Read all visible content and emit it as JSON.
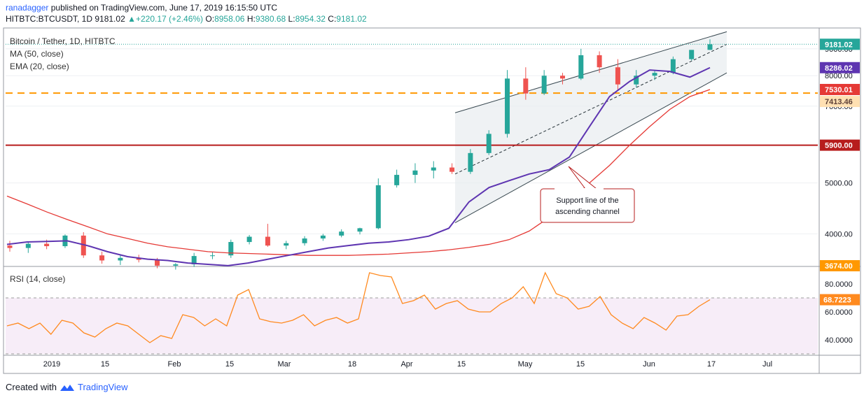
{
  "header": {
    "user": "ranadagger",
    "published": "published on TradingView.com, June 17, 2019 16:15:50 UTC",
    "symbol": "HITBTC:BTCUSDT, 1D",
    "last": "9181.02",
    "change": "+220.17 (+2.46%)",
    "o_label": "O:",
    "o": "8958.06",
    "h_label": "H:",
    "h": "9380.68",
    "l_label": "L:",
    "l": "8954.32",
    "c_label": "C:",
    "c": "9181.02"
  },
  "legend": {
    "title": "Bitcoin / Tether, 1D, HITBTC",
    "ma": "MA (50, close)",
    "ema": "EMA (20, close)",
    "rsi": "RSI (14, close)"
  },
  "annotation": {
    "line1": "Support line of the",
    "line2": "ascending channel"
  },
  "footer": {
    "created": "Created with",
    "brand": "TradingView"
  },
  "colors": {
    "up": "#26a69a",
    "down": "#ef5350",
    "ma": "#e53935",
    "ema": "#5e35b1",
    "resistance": "#b71c1c",
    "support_dash": "#ff9800",
    "rsi": "#ff8a1f",
    "channel": "#37474f"
  },
  "chart_data": [
    {
      "type": "candlestick",
      "title": "Bitcoin / Tether, 1D, HITBTC",
      "x_labels": [
        "2019",
        "15",
        "Feb",
        "15",
        "Mar",
        "18",
        "Apr",
        "15",
        "May",
        "15",
        "Jun",
        "17",
        "Jul"
      ],
      "y_ticks": [
        "4000.00",
        "5000.00",
        "7000.00",
        "8000.00",
        "9000.00"
      ],
      "y_scale": "log",
      "price_tags": [
        {
          "label": "9181.02",
          "value": 9181.02,
          "kind": "last"
        },
        {
          "label": "8286.02",
          "value": 8286.02,
          "kind": "ema"
        },
        {
          "label": "7530.01",
          "value": 7530.01,
          "kind": "ma"
        },
        {
          "label": "7413.46",
          "value": 7413.46,
          "kind": "support"
        },
        {
          "label": "5900.00",
          "value": 5900.0,
          "kind": "resistance"
        },
        {
          "label": "3674.00",
          "value": 3674.0,
          "kind": "axis-bottom"
        }
      ],
      "horizontal_levels": [
        {
          "value": 7413.46,
          "style": "dashed"
        },
        {
          "value": 5900.0,
          "style": "solid"
        }
      ],
      "series": [
        {
          "name": "MA (50, close)",
          "values": [
            4720,
            4560,
            4400,
            4260,
            4130,
            4000,
            3920,
            3840,
            3780,
            3740,
            3700,
            3680,
            3670,
            3660,
            3650,
            3640,
            3640,
            3640,
            3650,
            3660,
            3680,
            3700,
            3730,
            3770,
            3820,
            3900,
            4050,
            4300,
            4600,
            5000,
            5400,
            5900,
            6400,
            6900,
            7300,
            7530
          ]
        },
        {
          "name": "EMA (20, close)",
          "values": [
            3820,
            3860,
            3870,
            3880,
            3800,
            3700,
            3620,
            3580,
            3560,
            3520,
            3500,
            3480,
            3520,
            3580,
            3640,
            3700,
            3760,
            3800,
            3840,
            3860,
            3900,
            3960,
            4100,
            4600,
            4900,
            5050,
            5200,
            5300,
            5600,
            6400,
            7300,
            7800,
            8200,
            8150,
            7950,
            8286
          ]
        }
      ],
      "ohlc": [
        [
          3800,
          3880,
          3700,
          3760
        ],
        [
          3760,
          3860,
          3680,
          3830
        ],
        [
          3830,
          3900,
          3740,
          3790
        ],
        [
          3790,
          3990,
          3760,
          3970
        ],
        [
          3970,
          4030,
          3600,
          3640
        ],
        [
          3640,
          3700,
          3510,
          3560
        ],
        [
          3560,
          3640,
          3490,
          3600
        ],
        [
          3600,
          3650,
          3530,
          3570
        ],
        [
          3570,
          3600,
          3440,
          3480
        ],
        [
          3480,
          3520,
          3420,
          3500
        ],
        [
          3500,
          3680,
          3460,
          3630
        ],
        [
          3630,
          3700,
          3580,
          3640
        ],
        [
          3640,
          3900,
          3600,
          3860
        ],
        [
          3860,
          3980,
          3820,
          3950
        ],
        [
          3950,
          4180,
          3780,
          3800
        ],
        [
          3800,
          3880,
          3740,
          3840
        ],
        [
          3840,
          3960,
          3800,
          3920
        ],
        [
          3920,
          4000,
          3880,
          3970
        ],
        [
          3970,
          4080,
          3940,
          4040
        ],
        [
          4040,
          4110,
          3990,
          4100
        ],
        [
          4100,
          5100,
          4080,
          4950
        ],
        [
          4950,
          5300,
          4900,
          5180
        ],
        [
          5180,
          5450,
          5000,
          5280
        ],
        [
          5280,
          5500,
          5100,
          5350
        ],
        [
          5350,
          5450,
          5200,
          5250
        ],
        [
          5250,
          5800,
          5200,
          5700
        ],
        [
          5700,
          6300,
          5650,
          6200
        ],
        [
          6200,
          8200,
          6100,
          7900
        ],
        [
          7900,
          8300,
          7200,
          7400
        ],
        [
          7400,
          8200,
          7350,
          8000
        ],
        [
          8000,
          8100,
          7700,
          7900
        ],
        [
          7900,
          9000,
          7850,
          8750
        ],
        [
          8750,
          8900,
          8100,
          8300
        ],
        [
          8300,
          8600,
          7500,
          7700
        ],
        [
          7700,
          8200,
          7600,
          8000
        ],
        [
          8000,
          8200,
          7850,
          8100
        ],
        [
          8100,
          8700,
          8050,
          8600
        ],
        [
          8600,
          8950,
          8550,
          8958
        ],
        [
          8958,
          9380,
          8954,
          9181
        ]
      ],
      "channel": {
        "upper": [
          6800,
          9700
        ],
        "lower": [
          4200,
          8100
        ],
        "middle": [
          5200,
          9181
        ]
      }
    },
    {
      "type": "line",
      "title": "RSI (14, close)",
      "y_ticks": [
        "40.0000",
        "60.0000",
        "80.0000"
      ],
      "ylim": [
        30,
        90
      ],
      "levels": [
        70,
        30
      ],
      "last_value": "68.7223",
      "series": [
        {
          "name": "RSI (14, close)",
          "values": [
            50,
            52,
            48,
            52,
            44,
            54,
            52,
            45,
            42,
            48,
            52,
            50,
            44,
            38,
            43,
            41,
            58,
            56,
            50,
            55,
            50,
            72,
            76,
            55,
            53,
            52,
            54,
            58,
            50,
            54,
            56,
            52,
            55,
            88,
            86,
            85,
            66,
            68,
            72,
            62,
            66,
            68,
            62,
            60,
            60,
            66,
            70,
            78,
            66,
            88,
            73,
            70,
            62,
            64,
            71,
            58,
            52,
            48,
            56,
            52,
            47,
            57,
            58,
            64,
            68.7223
          ]
        }
      ]
    }
  ]
}
